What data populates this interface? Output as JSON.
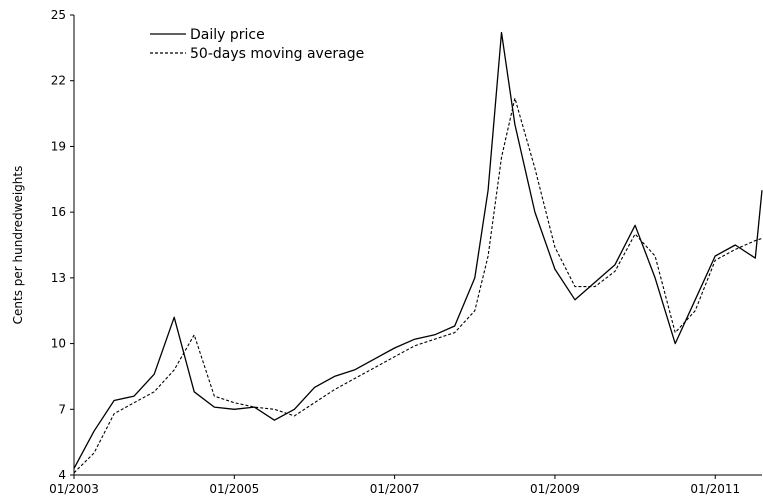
{
  "chart_data": {
    "type": "line",
    "title": "",
    "xlabel": "",
    "ylabel": "Cents per  hundredweights",
    "xlim": [
      "2003-01",
      "2011-08"
    ],
    "ylim": [
      4,
      25
    ],
    "yticks": [
      4,
      7,
      10,
      13,
      16,
      19,
      22,
      25
    ],
    "xticks": [
      "01/2003",
      "01/2005",
      "01/2007",
      "01/2009",
      "01/2011"
    ],
    "grid": false,
    "legend_position": "top-left",
    "x": [
      "2003-01",
      "2003-04",
      "2003-07",
      "2003-10",
      "2004-01",
      "2004-04",
      "2004-07",
      "2004-10",
      "2005-01",
      "2005-04",
      "2005-07",
      "2005-10",
      "2006-01",
      "2006-04",
      "2006-07",
      "2006-10",
      "2007-01",
      "2007-04",
      "2007-07",
      "2007-10",
      "2008-01",
      "2008-03",
      "2008-05",
      "2008-07",
      "2008-10",
      "2009-01",
      "2009-04",
      "2009-07",
      "2009-10",
      "2010-01",
      "2010-04",
      "2010-07",
      "2010-10",
      "2011-01",
      "2011-04",
      "2011-07",
      "2011-08"
    ],
    "series": [
      {
        "name": "Daily price",
        "style": "solid",
        "values": [
          4.3,
          6.0,
          7.4,
          7.6,
          8.6,
          11.2,
          7.8,
          7.1,
          7.0,
          7.1,
          6.5,
          7.0,
          8.0,
          8.5,
          8.8,
          9.3,
          9.8,
          10.2,
          10.4,
          10.8,
          13.0,
          17.0,
          24.2,
          20.0,
          16.0,
          13.4,
          12.0,
          12.8,
          13.6,
          15.4,
          13.0,
          10.0,
          12.0,
          14.0,
          14.5,
          13.9,
          17.0
        ]
      },
      {
        "name": "50-days moving average",
        "style": "dashed",
        "values": [
          4.1,
          5.0,
          6.8,
          7.3,
          7.8,
          8.8,
          10.4,
          7.6,
          7.3,
          7.1,
          7.0,
          6.7,
          7.3,
          7.9,
          8.4,
          8.9,
          9.4,
          9.9,
          10.2,
          10.5,
          11.5,
          14.0,
          18.5,
          21.2,
          18.0,
          14.4,
          12.6,
          12.6,
          13.3,
          15.0,
          14.0,
          10.5,
          11.5,
          13.8,
          14.3,
          14.7,
          14.8
        ]
      }
    ]
  }
}
